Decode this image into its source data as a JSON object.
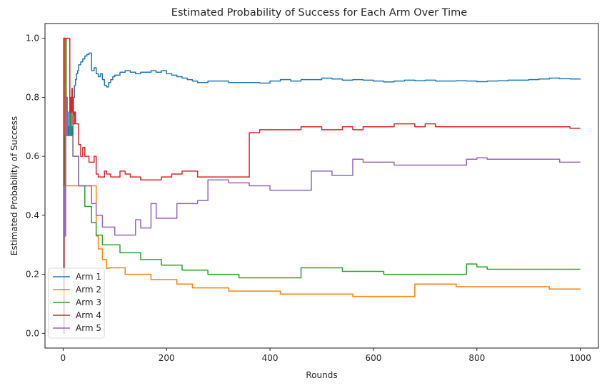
{
  "chart_data": {
    "type": "line",
    "title": "Estimated Probability of Success for Each Arm Over Time",
    "xlabel": "Rounds",
    "ylabel": "Estimated Probability of Success",
    "xlim": [
      -35,
      1035
    ],
    "ylim": [
      -0.05,
      1.05
    ],
    "xticks": [
      0,
      200,
      400,
      600,
      800,
      1000
    ],
    "xtick_labels": [
      "0",
      "200",
      "400",
      "600",
      "800",
      "1000"
    ],
    "yticks": [
      0.0,
      0.2,
      0.4,
      0.6,
      0.8,
      1.0
    ],
    "ytick_labels": [
      "0.0",
      "0.2",
      "0.4",
      "0.6",
      "0.8",
      "1.0"
    ],
    "grid": false,
    "legend_position": "lower-left",
    "series": [
      {
        "name": "Arm 1",
        "color": "#1f77b4",
        "x": [
          0,
          1,
          2,
          3,
          4,
          5,
          6,
          7,
          8,
          9,
          10,
          11,
          12,
          13,
          14,
          15,
          16,
          17,
          18,
          19,
          20,
          22,
          24,
          26,
          28,
          30,
          34,
          38,
          42,
          46,
          50,
          55,
          60,
          64,
          68,
          72,
          76,
          80,
          84,
          88,
          92,
          96,
          100,
          110,
          120,
          130,
          140,
          150,
          160,
          170,
          180,
          190,
          200,
          210,
          220,
          230,
          240,
          250,
          260,
          280,
          300,
          320,
          340,
          360,
          380,
          400,
          420,
          440,
          460,
          480,
          500,
          520,
          540,
          560,
          580,
          600,
          620,
          640,
          660,
          680,
          700,
          720,
          740,
          760,
          780,
          800,
          820,
          840,
          860,
          880,
          900,
          920,
          940,
          960,
          980,
          1000
        ],
        "y": [
          1.0,
          1.0,
          1.0,
          1.0,
          1.0,
          1.0,
          0.67,
          0.8,
          0.67,
          0.75,
          0.67,
          0.7,
          0.67,
          0.75,
          0.7,
          0.75,
          0.67,
          0.7,
          0.67,
          0.74,
          0.8,
          0.84,
          0.86,
          0.88,
          0.89,
          0.91,
          0.92,
          0.93,
          0.94,
          0.945,
          0.95,
          0.89,
          0.9,
          0.88,
          0.87,
          0.88,
          0.86,
          0.84,
          0.835,
          0.85,
          0.86,
          0.87,
          0.875,
          0.885,
          0.89,
          0.885,
          0.88,
          0.885,
          0.885,
          0.89,
          0.885,
          0.89,
          0.88,
          0.875,
          0.87,
          0.865,
          0.86,
          0.855,
          0.85,
          0.855,
          0.855,
          0.85,
          0.85,
          0.85,
          0.848,
          0.855,
          0.86,
          0.855,
          0.86,
          0.86,
          0.865,
          0.862,
          0.858,
          0.86,
          0.858,
          0.855,
          0.852,
          0.855,
          0.858,
          0.856,
          0.858,
          0.855,
          0.855,
          0.856,
          0.855,
          0.853,
          0.855,
          0.856,
          0.858,
          0.858,
          0.86,
          0.862,
          0.865,
          0.863,
          0.862,
          0.863
        ]
      },
      {
        "name": "Arm 2",
        "color": "#ff7f0e",
        "x": [
          0,
          1,
          2,
          3,
          4,
          5,
          6,
          7,
          8,
          9,
          10,
          11,
          12,
          13,
          14,
          15,
          16,
          17,
          18,
          19,
          20,
          22,
          24,
          26,
          28,
          30,
          34,
          38,
          42,
          46,
          50,
          55,
          60,
          64,
          68,
          72,
          76,
          80,
          84,
          88,
          92,
          96,
          100,
          110,
          120,
          130,
          140,
          150,
          160,
          170,
          180,
          190,
          200,
          210,
          220,
          230,
          240,
          250,
          260,
          280,
          300,
          320,
          340,
          360,
          380,
          400,
          420,
          440,
          460,
          480,
          500,
          520,
          540,
          560,
          580,
          600,
          620,
          640,
          660,
          680,
          700,
          720,
          740,
          760,
          780,
          800,
          820,
          840,
          860,
          880,
          900,
          920,
          940,
          960,
          980,
          1000
        ],
        "y": [
          0.0,
          0.0,
          0.0,
          1.0,
          0.5,
          0.5,
          0.5,
          0.5,
          0.5,
          0.5,
          0.5,
          0.5,
          0.5,
          0.5,
          0.5,
          0.5,
          0.5,
          0.5,
          0.5,
          0.5,
          0.5,
          0.5,
          0.5,
          0.5,
          0.5,
          0.5,
          0.5,
          0.5,
          0.5,
          0.5,
          0.5,
          0.5,
          0.5,
          0.33,
          0.286,
          0.286,
          0.25,
          0.25,
          0.22,
          0.222,
          0.222,
          0.222,
          0.222,
          0.222,
          0.2,
          0.2,
          0.2,
          0.2,
          0.2,
          0.182,
          0.182,
          0.182,
          0.182,
          0.182,
          0.167,
          0.167,
          0.167,
          0.154,
          0.154,
          0.154,
          0.154,
          0.143,
          0.143,
          0.143,
          0.143,
          0.143,
          0.133,
          0.133,
          0.133,
          0.133,
          0.133,
          0.133,
          0.133,
          0.125,
          0.125,
          0.125,
          0.125,
          0.125,
          0.125,
          0.167,
          0.167,
          0.167,
          0.167,
          0.158,
          0.158,
          0.158,
          0.158,
          0.158,
          0.158,
          0.158,
          0.158,
          0.158,
          0.15,
          0.15,
          0.15,
          0.15
        ]
      },
      {
        "name": "Arm 3",
        "color": "#2ca02c",
        "x": [
          0,
          1,
          2,
          3,
          4,
          5,
          6,
          7,
          8,
          9,
          10,
          11,
          12,
          13,
          14,
          15,
          16,
          17,
          18,
          19,
          20,
          22,
          24,
          26,
          28,
          30,
          34,
          38,
          42,
          46,
          50,
          55,
          60,
          64,
          68,
          72,
          76,
          80,
          84,
          88,
          92,
          96,
          100,
          110,
          120,
          130,
          140,
          150,
          160,
          170,
          180,
          190,
          200,
          210,
          220,
          230,
          240,
          250,
          260,
          280,
          300,
          320,
          340,
          360,
          380,
          400,
          420,
          440,
          460,
          480,
          500,
          520,
          540,
          560,
          580,
          600,
          620,
          640,
          660,
          680,
          700,
          720,
          740,
          760,
          780,
          800,
          820,
          840,
          860,
          880,
          900,
          920,
          940,
          960,
          980,
          1000
        ],
        "y": [
          0.0,
          1.0,
          0.5,
          0.67,
          0.5,
          1.0,
          0.67,
          0.67,
          0.67,
          0.67,
          0.67,
          0.67,
          0.67,
          0.75,
          0.67,
          0.67,
          0.67,
          0.67,
          0.67,
          0.6,
          0.6,
          0.6,
          0.6,
          0.6,
          0.6,
          0.5,
          0.5,
          0.5,
          0.43,
          0.43,
          0.43,
          0.375,
          0.375,
          0.333,
          0.333,
          0.333,
          0.3,
          0.3,
          0.3,
          0.3,
          0.3,
          0.3,
          0.3,
          0.273,
          0.273,
          0.273,
          0.273,
          0.25,
          0.25,
          0.25,
          0.25,
          0.231,
          0.231,
          0.231,
          0.231,
          0.214,
          0.214,
          0.214,
          0.214,
          0.2,
          0.2,
          0.2,
          0.188,
          0.188,
          0.188,
          0.188,
          0.188,
          0.188,
          0.222,
          0.222,
          0.222,
          0.222,
          0.21,
          0.21,
          0.21,
          0.21,
          0.2,
          0.2,
          0.2,
          0.2,
          0.2,
          0.2,
          0.2,
          0.2,
          0.235,
          0.225,
          0.217,
          0.217,
          0.217,
          0.217,
          0.217,
          0.217,
          0.217,
          0.217,
          0.217,
          0.217
        ]
      },
      {
        "name": "Arm 4",
        "color": "#d62728",
        "x": [
          0,
          1,
          2,
          3,
          4,
          5,
          6,
          7,
          8,
          9,
          10,
          11,
          12,
          13,
          14,
          15,
          16,
          17,
          18,
          19,
          20,
          22,
          24,
          26,
          28,
          30,
          34,
          38,
          42,
          46,
          50,
          55,
          60,
          64,
          68,
          72,
          76,
          80,
          84,
          88,
          92,
          96,
          100,
          110,
          120,
          130,
          140,
          150,
          160,
          170,
          180,
          190,
          200,
          210,
          220,
          230,
          240,
          250,
          260,
          280,
          300,
          320,
          340,
          360,
          380,
          400,
          420,
          440,
          460,
          480,
          500,
          520,
          540,
          560,
          580,
          600,
          620,
          640,
          660,
          680,
          700,
          720,
          740,
          760,
          780,
          800,
          820,
          840,
          860,
          880,
          900,
          920,
          940,
          960,
          980,
          1000
        ],
        "y": [
          0.5,
          0.5,
          1.0,
          1.0,
          1.0,
          1.0,
          1.0,
          1.0,
          1.0,
          1.0,
          1.0,
          1.0,
          1.0,
          0.75,
          0.75,
          0.8,
          0.75,
          0.83,
          0.8,
          0.71,
          0.71,
          0.75,
          0.71,
          0.71,
          0.71,
          0.64,
          0.6,
          0.63,
          0.6,
          0.6,
          0.58,
          0.58,
          0.6,
          0.54,
          0.53,
          0.53,
          0.53,
          0.55,
          0.54,
          0.54,
          0.53,
          0.53,
          0.53,
          0.55,
          0.54,
          0.53,
          0.53,
          0.52,
          0.52,
          0.52,
          0.52,
          0.53,
          0.53,
          0.54,
          0.54,
          0.55,
          0.55,
          0.55,
          0.53,
          0.53,
          0.53,
          0.53,
          0.53,
          0.68,
          0.69,
          0.69,
          0.69,
          0.69,
          0.7,
          0.7,
          0.69,
          0.69,
          0.7,
          0.69,
          0.7,
          0.7,
          0.7,
          0.71,
          0.71,
          0.7,
          0.71,
          0.7,
          0.7,
          0.7,
          0.7,
          0.7,
          0.7,
          0.7,
          0.7,
          0.7,
          0.7,
          0.7,
          0.7,
          0.7,
          0.695,
          0.695
        ]
      },
      {
        "name": "Arm 5",
        "color": "#9467bd",
        "x": [
          0,
          1,
          2,
          3,
          4,
          5,
          6,
          7,
          8,
          9,
          10,
          11,
          12,
          13,
          14,
          15,
          16,
          17,
          18,
          19,
          20,
          22,
          24,
          26,
          28,
          30,
          34,
          38,
          42,
          46,
          50,
          55,
          60,
          64,
          68,
          72,
          76,
          80,
          84,
          88,
          92,
          96,
          100,
          110,
          120,
          130,
          140,
          150,
          160,
          170,
          180,
          190,
          200,
          210,
          220,
          230,
          240,
          250,
          260,
          280,
          300,
          320,
          340,
          360,
          380,
          400,
          420,
          440,
          460,
          480,
          500,
          520,
          540,
          560,
          580,
          600,
          620,
          640,
          660,
          680,
          700,
          720,
          740,
          760,
          780,
          800,
          820,
          840,
          860,
          880,
          900,
          920,
          940,
          960,
          980,
          1000
        ],
        "y": [
          0.0,
          0.0,
          0.5,
          0.5,
          0.33,
          0.67,
          0.75,
          0.8,
          0.67,
          0.67,
          0.67,
          0.67,
          0.67,
          0.67,
          0.67,
          0.67,
          0.67,
          0.67,
          0.67,
          0.6,
          0.6,
          0.6,
          0.6,
          0.6,
          0.6,
          0.5,
          0.5,
          0.5,
          0.5,
          0.5,
          0.5,
          0.44,
          0.44,
          0.4,
          0.4,
          0.4,
          0.36,
          0.36,
          0.36,
          0.36,
          0.36,
          0.36,
          0.333,
          0.333,
          0.333,
          0.333,
          0.385,
          0.357,
          0.357,
          0.44,
          0.39,
          0.39,
          0.39,
          0.39,
          0.44,
          0.44,
          0.44,
          0.44,
          0.45,
          0.52,
          0.52,
          0.51,
          0.51,
          0.5,
          0.5,
          0.485,
          0.485,
          0.485,
          0.485,
          0.55,
          0.55,
          0.535,
          0.535,
          0.59,
          0.58,
          0.58,
          0.58,
          0.57,
          0.57,
          0.57,
          0.57,
          0.57,
          0.57,
          0.57,
          0.59,
          0.595,
          0.59,
          0.59,
          0.59,
          0.59,
          0.59,
          0.59,
          0.59,
          0.58,
          0.58,
          0.58
        ]
      }
    ]
  }
}
